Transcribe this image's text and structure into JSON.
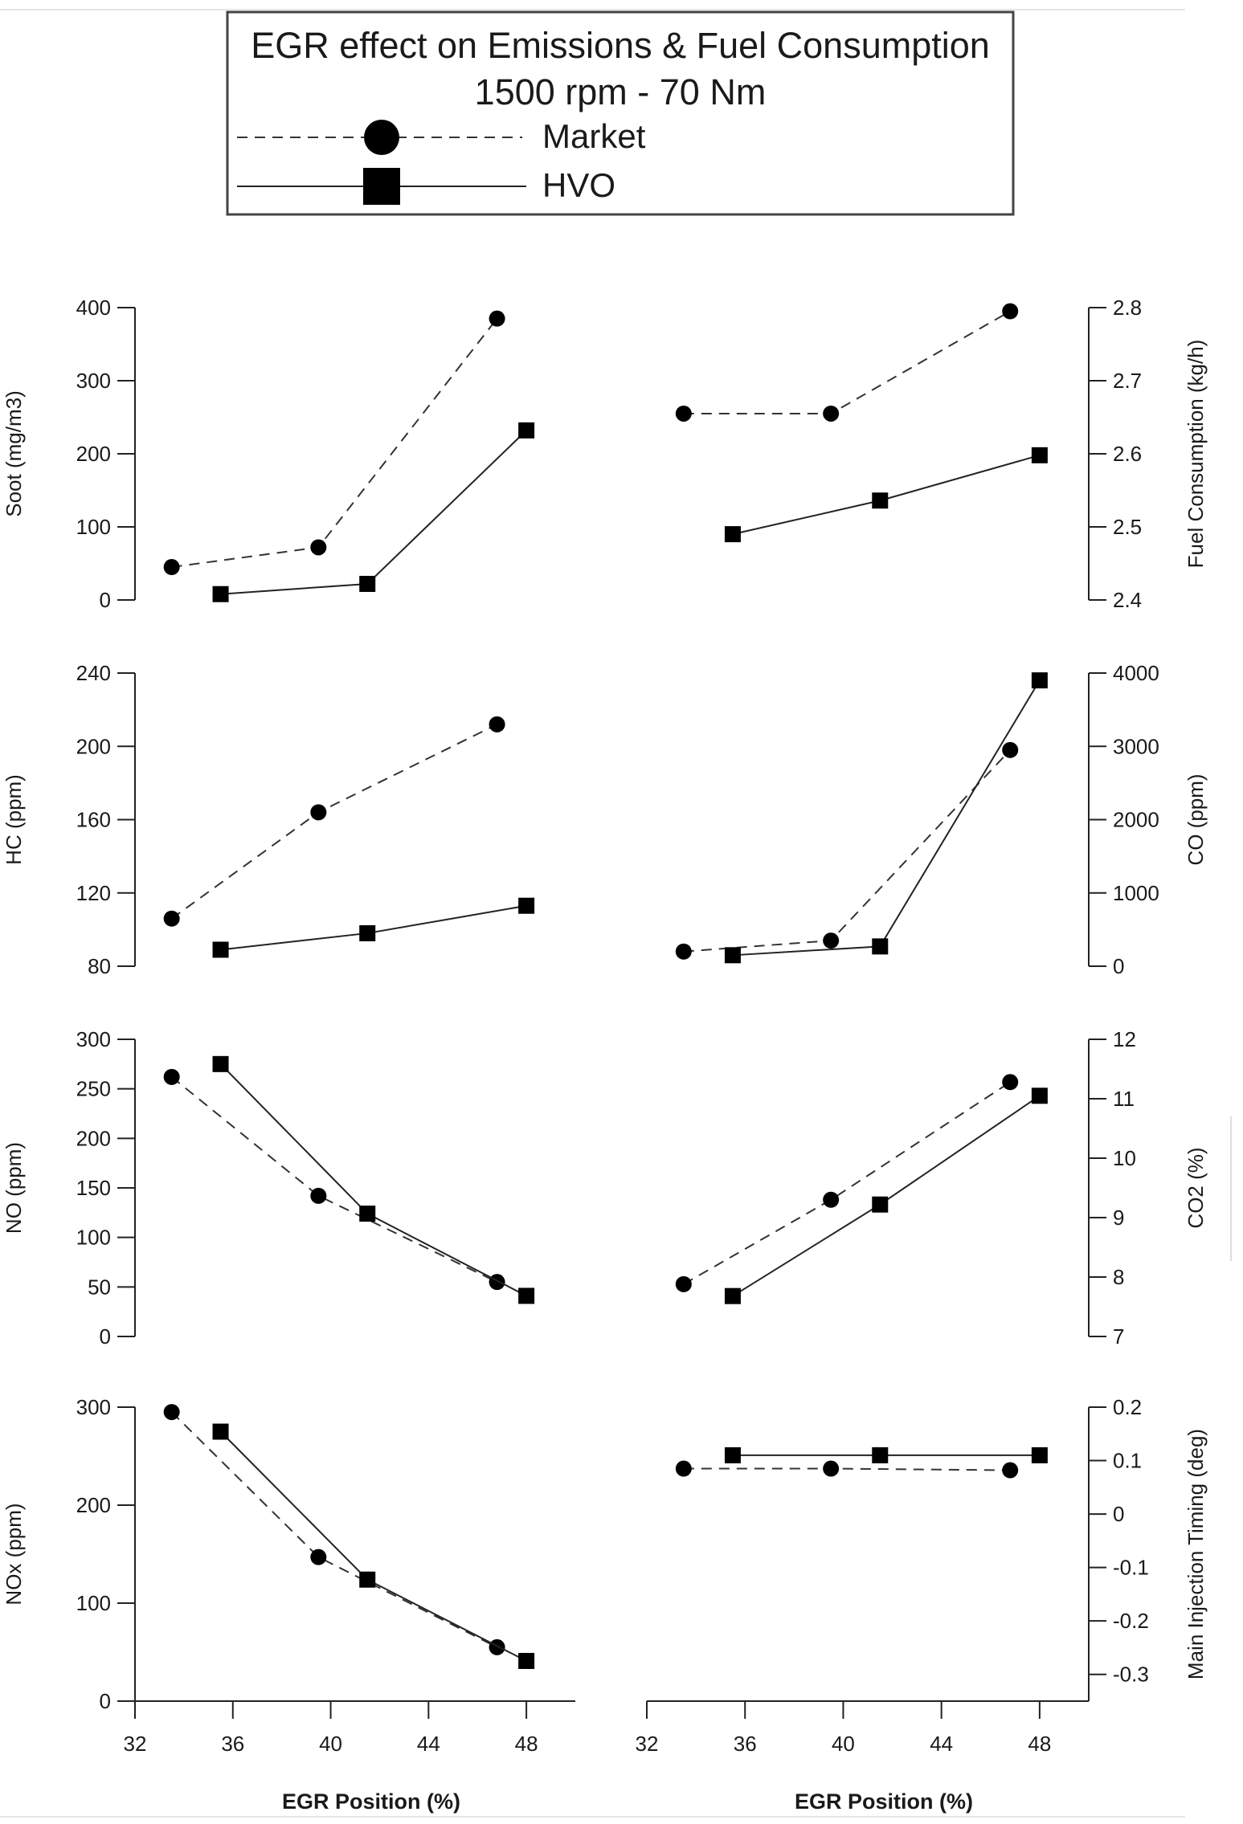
{
  "legend": {
    "title_line1": "EGR effect on Emissions & Fuel Consumption",
    "title_line2": "1500 rpm - 70 Nm",
    "market_label": "Market",
    "hvo_label": "HVO"
  },
  "colors": {
    "lines": "#222222",
    "markers": "#000000",
    "background": "#ffffff"
  },
  "chart_data": [
    {
      "id": "soot",
      "type": "line",
      "col": 0,
      "row": 0,
      "axis_side": "left",
      "ylabel": "Soot (mg/m3)",
      "ylim": [
        0,
        400
      ],
      "yticks": [
        0,
        100,
        200,
        300,
        400
      ],
      "xlabel": "",
      "xlim": [
        32,
        50
      ],
      "xticks": [],
      "grid": false,
      "series": [
        {
          "name": "Market",
          "marker": "circle",
          "style": "dashed",
          "x": [
            33.5,
            39.5,
            46.8
          ],
          "y": [
            45,
            72,
            385
          ]
        },
        {
          "name": "HVO",
          "marker": "square",
          "style": "solid",
          "x": [
            35.5,
            41.5,
            48.0
          ],
          "y": [
            8,
            22,
            232
          ]
        }
      ]
    },
    {
      "id": "fuel",
      "type": "line",
      "col": 1,
      "row": 0,
      "axis_side": "right",
      "ylabel": "Fuel Consumption (kg/h)",
      "ylim": [
        2.4,
        2.8
      ],
      "yticks": [
        2.4,
        2.5,
        2.6,
        2.7,
        2.8
      ],
      "xlabel": "",
      "xlim": [
        32,
        50
      ],
      "xticks": [],
      "grid": false,
      "series": [
        {
          "name": "Market",
          "marker": "circle",
          "style": "dashed",
          "x": [
            33.5,
            39.5,
            46.8
          ],
          "y": [
            2.655,
            2.655,
            2.795
          ]
        },
        {
          "name": "HVO",
          "marker": "square",
          "style": "solid",
          "x": [
            35.5,
            41.5,
            48.0
          ],
          "y": [
            2.49,
            2.536,
            2.598
          ]
        }
      ]
    },
    {
      "id": "hc",
      "type": "line",
      "col": 0,
      "row": 1,
      "axis_side": "left",
      "ylabel": "HC (ppm)",
      "ylim": [
        80,
        240
      ],
      "yticks": [
        80,
        120,
        160,
        200,
        240
      ],
      "xlabel": "",
      "xlim": [
        32,
        50
      ],
      "xticks": [],
      "grid": false,
      "series": [
        {
          "name": "Market",
          "marker": "circle",
          "style": "dashed",
          "x": [
            33.5,
            39.5,
            46.8
          ],
          "y": [
            106,
            164,
            212
          ]
        },
        {
          "name": "HVO",
          "marker": "square",
          "style": "solid",
          "x": [
            35.5,
            41.5,
            48.0
          ],
          "y": [
            89,
            98,
            113
          ]
        }
      ]
    },
    {
      "id": "co",
      "type": "line",
      "col": 1,
      "row": 1,
      "axis_side": "right",
      "ylabel": "CO (ppm)",
      "ylim": [
        0,
        4000
      ],
      "yticks": [
        0,
        1000,
        2000,
        3000,
        4000
      ],
      "xlabel": "",
      "xlim": [
        32,
        50
      ],
      "xticks": [],
      "grid": false,
      "series": [
        {
          "name": "Market",
          "marker": "circle",
          "style": "dashed",
          "x": [
            33.5,
            39.5,
            46.8
          ],
          "y": [
            200,
            350,
            2950
          ]
        },
        {
          "name": "HVO",
          "marker": "square",
          "style": "solid",
          "x": [
            35.5,
            41.5,
            48.0
          ],
          "y": [
            150,
            270,
            3900
          ]
        }
      ]
    },
    {
      "id": "no",
      "type": "line",
      "col": 0,
      "row": 2,
      "axis_side": "left",
      "ylabel": "NO (ppm)",
      "ylim": [
        0,
        300
      ],
      "yticks": [
        0,
        50,
        100,
        150,
        200,
        250,
        300
      ],
      "xlabel": "",
      "xlim": [
        32,
        50
      ],
      "xticks": [],
      "grid": false,
      "series": [
        {
          "name": "Market",
          "marker": "circle",
          "style": "dashed",
          "x": [
            33.5,
            39.5,
            46.8
          ],
          "y": [
            262,
            142,
            55
          ]
        },
        {
          "name": "HVO",
          "marker": "square",
          "style": "solid",
          "x": [
            35.5,
            41.5,
            48.0
          ],
          "y": [
            275,
            124,
            41
          ]
        }
      ]
    },
    {
      "id": "co2",
      "type": "line",
      "col": 1,
      "row": 2,
      "axis_side": "right",
      "ylabel": "CO2 (%)",
      "ylim": [
        7,
        12
      ],
      "yticks": [
        7,
        8,
        9,
        10,
        11,
        12
      ],
      "xlabel": "",
      "xlim": [
        32,
        50
      ],
      "xticks": [],
      "grid": false,
      "series": [
        {
          "name": "Market",
          "marker": "circle",
          "style": "dashed",
          "x": [
            33.5,
            39.5,
            46.8
          ],
          "y": [
            7.88,
            9.3,
            11.28
          ]
        },
        {
          "name": "HVO",
          "marker": "square",
          "style": "solid",
          "x": [
            35.5,
            41.5,
            48.0
          ],
          "y": [
            7.68,
            9.22,
            11.05
          ]
        }
      ]
    },
    {
      "id": "nox",
      "type": "line",
      "col": 0,
      "row": 3,
      "axis_side": "left",
      "ylabel": "NOx (ppm)",
      "ylim": [
        0,
        300
      ],
      "yticks": [
        0,
        100,
        200,
        300
      ],
      "xlabel": "EGR Position (%)",
      "xlim": [
        32,
        50
      ],
      "xticks": [
        32,
        36,
        40,
        44,
        48
      ],
      "grid": false,
      "series": [
        {
          "name": "Market",
          "marker": "circle",
          "style": "dashed",
          "x": [
            33.5,
            39.5,
            46.8
          ],
          "y": [
            295,
            147,
            55
          ]
        },
        {
          "name": "HVO",
          "marker": "square",
          "style": "solid",
          "x": [
            35.5,
            41.5,
            48.0
          ],
          "y": [
            275,
            124,
            41
          ]
        }
      ]
    },
    {
      "id": "timing",
      "type": "line",
      "col": 1,
      "row": 3,
      "axis_side": "right",
      "ylabel": "Main Injection Timing (deg)",
      "ylim": [
        -0.35,
        0.2
      ],
      "yticks": [
        -0.3,
        -0.2,
        -0.1,
        0,
        0.1,
        0.2
      ],
      "xlabel": "EGR Position (%)",
      "xlim": [
        32,
        50
      ],
      "xticks": [
        32,
        36,
        40,
        44,
        48
      ],
      "grid": false,
      "series": [
        {
          "name": "Market",
          "marker": "circle",
          "style": "dashed",
          "x": [
            33.5,
            39.5,
            46.8
          ],
          "y": [
            0.085,
            0.085,
            0.082
          ]
        },
        {
          "name": "HVO",
          "marker": "square",
          "style": "solid",
          "x": [
            35.5,
            41.5,
            48.0
          ],
          "y": [
            0.11,
            0.11,
            0.11
          ]
        }
      ]
    }
  ]
}
